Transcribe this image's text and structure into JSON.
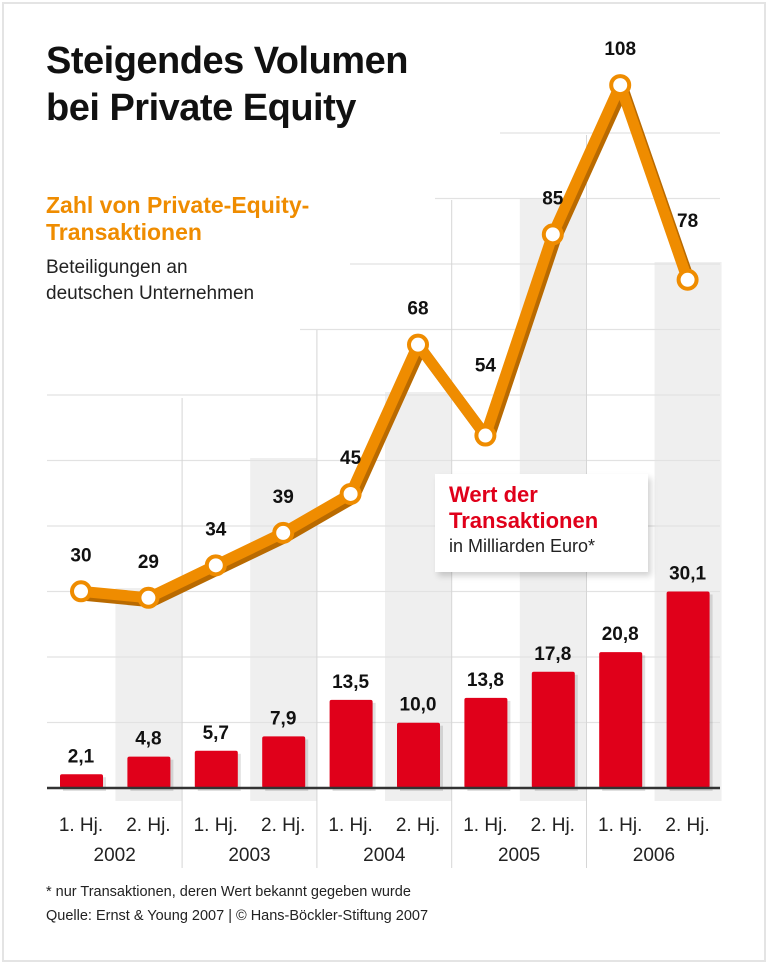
{
  "title_line1": "Steigendes Volumen",
  "title_line2": "bei Private Equity",
  "line_legend": {
    "title_line1": "Zahl von Private-Equity-",
    "title_line2": "Transaktionen",
    "sub_line1": "Beteiligungen an",
    "sub_line2": "deutschen Unternehmen"
  },
  "bar_legend": {
    "title_line1": "Wert der",
    "title_line2": "Transaktionen",
    "sub": "in Milliarden Euro*"
  },
  "footnote": "* nur Transaktionen, deren Wert bekannt gegeben wurde",
  "source": "Quelle: Ernst & Young 2007 | © Hans-Böckler-Stiftung 2007",
  "chart_data": {
    "type": "bar+line",
    "categories": [
      "1. Hj. 2002",
      "2. Hj. 2002",
      "1. Hj. 2003",
      "2. Hj. 2003",
      "1. Hj. 2004",
      "2. Hj. 2004",
      "1. Hj. 2005",
      "2. Hj. 2005",
      "1. Hj. 2006",
      "2. Hj. 2006"
    ],
    "half_labels": [
      "1. Hj.",
      "2. Hj.",
      "1. Hj.",
      "2. Hj.",
      "1. Hj.",
      "2. Hj.",
      "1. Hj.",
      "2. Hj.",
      "1. Hj.",
      "2. Hj."
    ],
    "years": [
      "2002",
      "2003",
      "2004",
      "2005",
      "2006"
    ],
    "series": [
      {
        "name": "Zahl von Private-Equity-Transaktionen",
        "type": "line",
        "color": "#ef8c00",
        "values": [
          30,
          29,
          34,
          39,
          45,
          68,
          54,
          85,
          108,
          78
        ],
        "labels": [
          "30",
          "29",
          "34",
          "39",
          "45",
          "68",
          "54",
          "85",
          "108",
          "78"
        ]
      },
      {
        "name": "Wert der Transaktionen",
        "type": "bar",
        "color": "#e0001a",
        "values": [
          2.1,
          4.8,
          5.7,
          7.9,
          13.5,
          10.0,
          13.8,
          17.8,
          20.8,
          30.1
        ],
        "labels": [
          "2,1",
          "4,8",
          "5,7",
          "7,9",
          "13,5",
          "10,0",
          "13,8",
          "17,8",
          "20,8",
          "30,1"
        ]
      }
    ],
    "grid": true
  }
}
